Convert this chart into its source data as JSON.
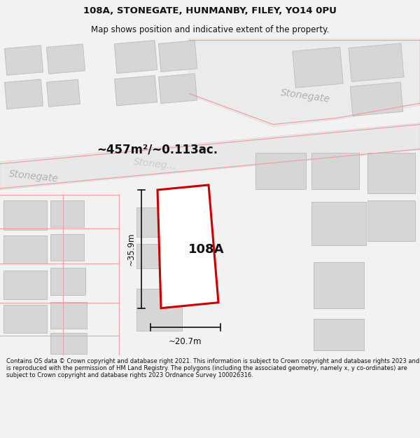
{
  "title_line1": "108A, STONEGATE, HUNMANBY, FILEY, YO14 0PU",
  "title_line2": "Map shows position and indicative extent of the property.",
  "area_text": "~457m²/~0.113ac.",
  "label_108A": "108A",
  "dim_height": "~35.9m",
  "dim_width": "~20.7m",
  "stonegate_label1": "Stonegate",
  "stonegate_label2": "Stonegate",
  "stonegate_faded": "Stoneg...",
  "footer_text": "Contains OS data © Crown copyright and database right 2021. This information is subject to Crown copyright and database rights 2023 and is reproduced with the permission of HM Land Registry. The polygons (including the associated geometry, namely x, y co-ordinates) are subject to Crown copyright and database rights 2023 Ordnance Survey 100026316.",
  "bg_color": "#f2f2f2",
  "map_bg": "#f8f8f8",
  "road_fill": "#e4e4e4",
  "building_fill": "#d6d6d6",
  "building_edge": "#c0c0c0",
  "pink_road": "#f0a0a0",
  "red_plot": "#cc0000",
  "black": "#111111",
  "gray_label": "#b0b0b0",
  "title_fontsize": 9.5,
  "subtitle_fontsize": 8.5,
  "footer_fontsize": 6.0,
  "area_fontsize": 12,
  "label_fontsize": 13,
  "dim_fontsize": 8.5,
  "stonegate_fontsize": 10
}
